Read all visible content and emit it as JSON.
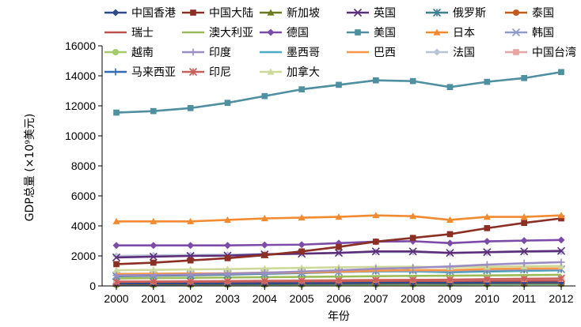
{
  "chart_data": {
    "type": "line",
    "xlabel": "年份",
    "ylabel": "GDP总量 (×10⁹美元)",
    "ylim": [
      0,
      16000
    ],
    "yticks": [
      0,
      2000,
      4000,
      6000,
      8000,
      10000,
      12000,
      14000,
      16000
    ],
    "x": [
      "2000",
      "2001",
      "2002",
      "2003",
      "2004",
      "2005",
      "2006",
      "2007",
      "2008",
      "2009",
      "2010",
      "2011",
      "2012"
    ],
    "grid": false,
    "legend_position": "top",
    "series": [
      {
        "name": "中国香港",
        "color": "#2E4A8B",
        "marker": "diamond",
        "values": [
          170,
          170,
          165,
          160,
          170,
          180,
          190,
          210,
          220,
          215,
          230,
          250,
          260
        ]
      },
      {
        "name": "中国大陆",
        "color": "#8B2E24",
        "marker": "square",
        "values": [
          1450,
          1550,
          1700,
          1850,
          2050,
          2300,
          2600,
          2950,
          3200,
          3450,
          3850,
          4200,
          4500
        ]
      },
      {
        "name": "新加坡",
        "color": "#6B7A1E",
        "marker": "triangle",
        "values": [
          130,
          125,
          125,
          130,
          140,
          150,
          160,
          170,
          180,
          180,
          200,
          210,
          215
        ]
      },
      {
        "name": "英国",
        "color": "#5C2E7A",
        "marker": "x",
        "values": [
          1900,
          1950,
          2000,
          2020,
          2100,
          2150,
          2200,
          2300,
          2300,
          2200,
          2250,
          2300,
          2330
        ]
      },
      {
        "name": "俄罗斯",
        "color": "#3E7F92",
        "marker": "asterisk",
        "values": [
          650,
          680,
          710,
          760,
          810,
          860,
          930,
          1000,
          1060,
          980,
          1030,
          1080,
          1110
        ]
      },
      {
        "name": "泰国",
        "color": "#C65A1E",
        "marker": "circle",
        "values": [
          150,
          155,
          160,
          170,
          180,
          190,
          200,
          210,
          215,
          210,
          225,
          230,
          240
        ]
      },
      {
        "name": "瑞士",
        "color": "#C0504D",
        "marker": "none",
        "values": [
          290,
          293,
          295,
          295,
          302,
          310,
          320,
          335,
          340,
          335,
          345,
          350,
          355
        ]
      },
      {
        "name": "澳大利亚",
        "color": "#9BBB59",
        "marker": "none",
        "values": [
          500,
          520,
          540,
          560,
          580,
          600,
          620,
          650,
          670,
          680,
          700,
          720,
          740
        ]
      },
      {
        "name": "德国",
        "color": "#7C4AA8",
        "marker": "diamond",
        "values": [
          2700,
          2700,
          2700,
          2700,
          2730,
          2750,
          2850,
          2950,
          2980,
          2850,
          2970,
          3020,
          3060
        ]
      },
      {
        "name": "美国",
        "color": "#4E8FA0",
        "marker": "square",
        "values": [
          11550,
          11650,
          11850,
          12200,
          12650,
          13100,
          13400,
          13700,
          13650,
          13250,
          13600,
          13850,
          14250
        ]
      },
      {
        "name": "日本",
        "color": "#F28A30",
        "marker": "triangle",
        "values": [
          4300,
          4300,
          4300,
          4400,
          4500,
          4550,
          4600,
          4700,
          4650,
          4400,
          4600,
          4600,
          4700
        ]
      },
      {
        "name": "韩国",
        "color": "#8E9BC9",
        "marker": "x",
        "values": [
          700,
          730,
          780,
          810,
          850,
          890,
          940,
          990,
          1010,
          1000,
          1060,
          1100,
          1120
        ]
      },
      {
        "name": "越南",
        "color": "#A6C96A",
        "marker": "circle",
        "values": [
          50,
          55,
          58,
          62,
          67,
          72,
          78,
          84,
          89,
          93,
          100,
          106,
          111
        ]
      },
      {
        "name": "印度",
        "color": "#9C8CC4",
        "marker": "plus",
        "values": [
          700,
          730,
          760,
          820,
          880,
          960,
          1040,
          1140,
          1210,
          1300,
          1420,
          1510,
          1580
        ]
      },
      {
        "name": "墨西哥",
        "color": "#4BACC6",
        "marker": "none",
        "values": [
          800,
          800,
          805,
          815,
          850,
          880,
          930,
          960,
          970,
          910,
          960,
          1000,
          1040
        ]
      },
      {
        "name": "巴西",
        "color": "#F79646",
        "marker": "none",
        "values": [
          800,
          810,
          830,
          840,
          885,
          910,
          950,
          1010,
          1060,
          1050,
          1130,
          1160,
          1170
        ]
      },
      {
        "name": "法国",
        "color": "#B9C3D6",
        "marker": "diamond",
        "values": [
          2000,
          2040,
          2060,
          2080,
          2130,
          2160,
          2210,
          2260,
          2260,
          2190,
          2230,
          2270,
          2270
        ]
      },
      {
        "name": "中国台湾",
        "color": "#E6A5A0",
        "marker": "square",
        "values": [
          320,
          315,
          330,
          340,
          360,
          370,
          390,
          410,
          410,
          405,
          440,
          460,
          470
        ]
      },
      {
        "name": "马来西亚",
        "color": "#2F6EB3",
        "marker": "plus",
        "values": [
          100,
          101,
          106,
          112,
          120,
          127,
          134,
          142,
          149,
          148,
          159,
          167,
          176
        ]
      },
      {
        "name": "印尼",
        "color": "#C9605A",
        "marker": "asterisk",
        "values": [
          270,
          280,
          290,
          300,
          320,
          340,
          360,
          380,
          400,
          420,
          450,
          480,
          500
        ]
      },
      {
        "name": "加拿大",
        "color": "#CDD99B",
        "marker": "triangle",
        "values": [
          1050,
          1070,
          1100,
          1120,
          1160,
          1200,
          1240,
          1270,
          1280,
          1240,
          1280,
          1310,
          1330
        ]
      }
    ]
  }
}
